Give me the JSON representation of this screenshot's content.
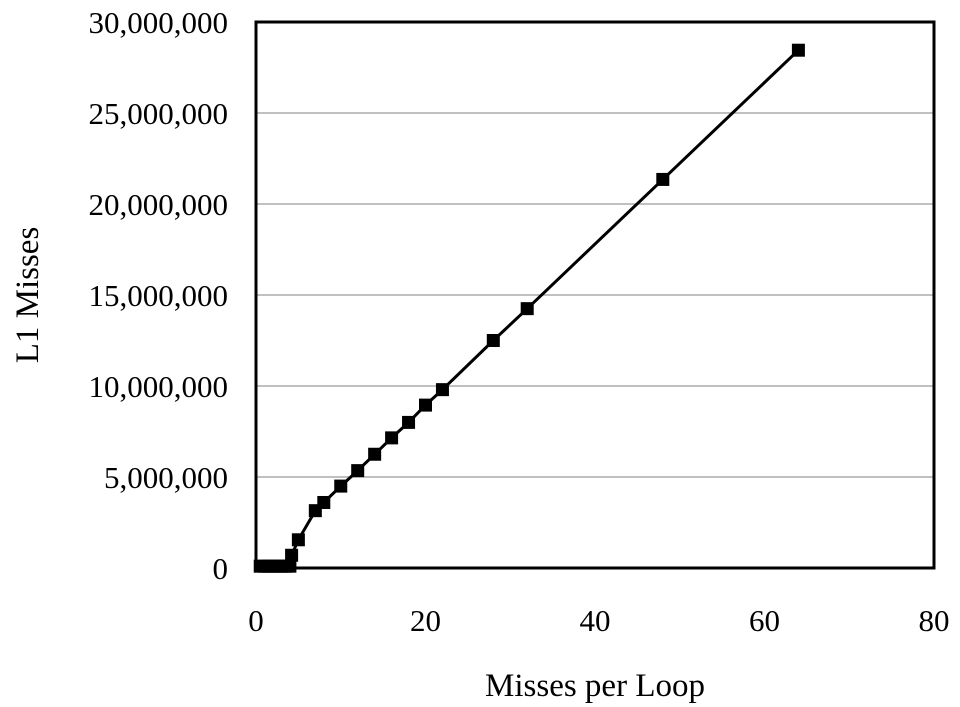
{
  "chart_data": {
    "type": "line",
    "title": "",
    "xlabel": "Misses per Loop",
    "ylabel": "L1 Misses",
    "xlim": [
      0,
      80
    ],
    "ylim": [
      0,
      30000000
    ],
    "x_ticks": [
      0,
      20,
      40,
      60,
      80
    ],
    "y_ticks": [
      0,
      5000000,
      10000000,
      15000000,
      20000000,
      25000000,
      30000000
    ],
    "x_tick_labels": [
      "0",
      "20",
      "40",
      "60",
      "80"
    ],
    "y_tick_labels": [
      "0",
      "5,000,000",
      "10,000,000",
      "15,000,000",
      "20,000,000",
      "25,000,000",
      "30,000,000"
    ],
    "grid": {
      "y": true,
      "x": false
    },
    "legend": "none",
    "colors": {
      "line": "#000000",
      "marker": "#000000",
      "grid": "#9a9a9a",
      "frame": "#000000"
    },
    "marker": "square",
    "series": [
      {
        "x": [
          0.5,
          1,
          1.5,
          2,
          2.5,
          3,
          3.5,
          4,
          4.2,
          5,
          7,
          8,
          10,
          12,
          14,
          16,
          18,
          20,
          22,
          28,
          32,
          48,
          64
        ],
        "y": [
          100000,
          100000,
          100000,
          100000,
          100000,
          100000,
          100000,
          100000,
          700000,
          1550000,
          3150000,
          3600000,
          4500000,
          5350000,
          6250000,
          7150000,
          8000000,
          8950000,
          9800000,
          12500000,
          14250000,
          21350000,
          28450000
        ]
      }
    ]
  }
}
